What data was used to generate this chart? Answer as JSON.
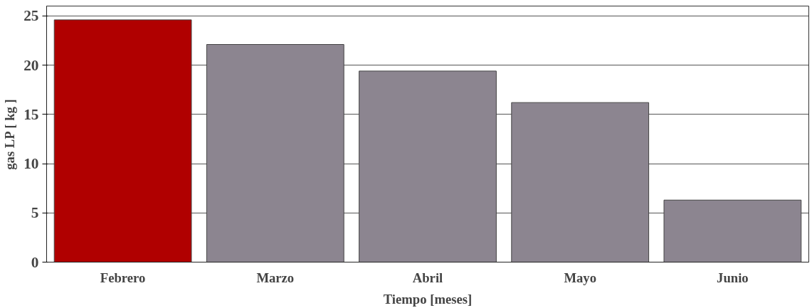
{
  "chart_data": {
    "type": "bar",
    "xlabel": "Tiempo [meses]",
    "ylabel": "gas LP [ kg ]",
    "categories": [
      "Febrero",
      "Marzo",
      "Abril",
      "Mayo",
      "Junio"
    ],
    "values": [
      24.6,
      22.1,
      19.4,
      16.2,
      6.3
    ],
    "colors": [
      "#b00000",
      "#8c8590",
      "#8c8590",
      "#8c8590",
      "#8c8590"
    ],
    "ylim": [
      0,
      26
    ],
    "yticks": [
      0,
      5,
      10,
      15,
      20,
      25
    ],
    "grid": "y"
  }
}
